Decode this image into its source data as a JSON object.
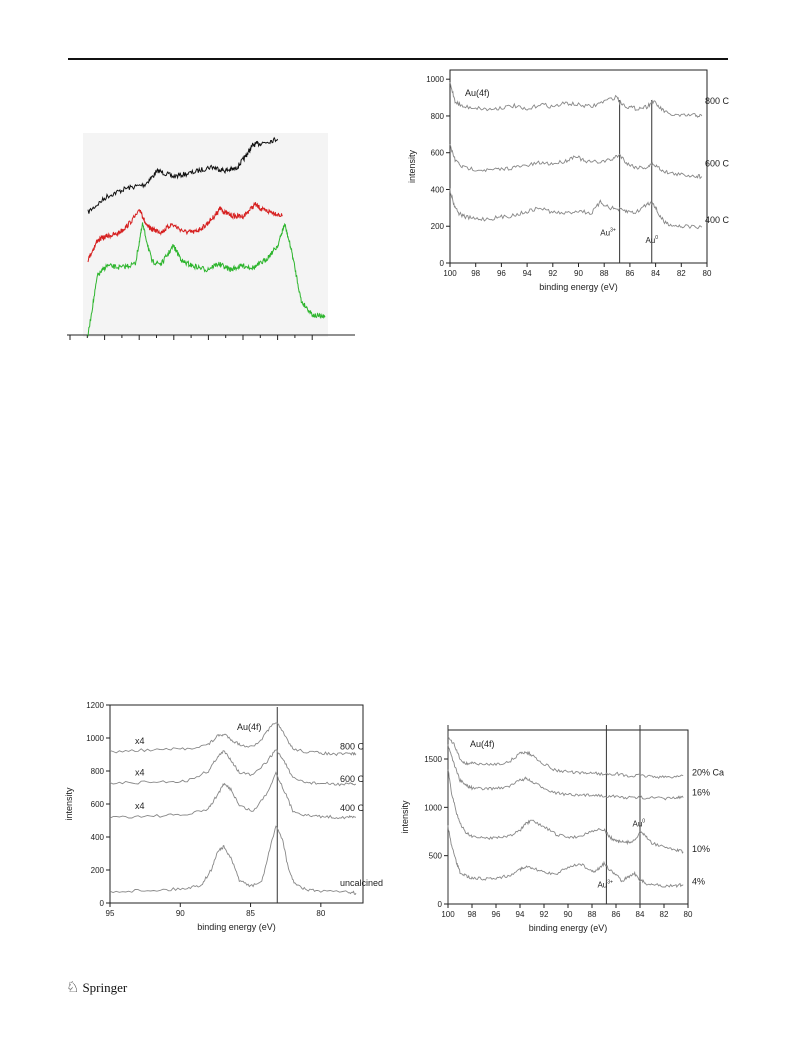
{
  "footer": {
    "publisher": "Springer",
    "publisher_icon": "springer-horse-icon"
  },
  "colors": {
    "black_trace": "#111111",
    "red_trace": "#d62020",
    "green_trace": "#2db52d",
    "spectrum_line": "#888888",
    "axis": "#222222"
  },
  "chart_data": [
    {
      "id": "fig-a",
      "type": "line",
      "title": "",
      "xlabel": "",
      "ylabel": "",
      "tick_labels_shown": false,
      "series": [
        {
          "color": "#111111",
          "x": [
            0,
            0.1,
            0.2,
            0.3,
            0.37,
            0.45,
            0.55,
            0.65,
            0.72,
            0.78,
            0.83,
            0.87,
            0.92,
            1.0
          ],
          "y": [
            0.62,
            0.7,
            0.74,
            0.76,
            0.83,
            0.8,
            0.82,
            0.85,
            0.83,
            0.84,
            0.9,
            0.96,
            0.97,
            0.99
          ]
        },
        {
          "color": "#d62020",
          "x": [
            0,
            0.05,
            0.1,
            0.15,
            0.2,
            0.27,
            0.3,
            0.34,
            0.38,
            0.43,
            0.5,
            0.55,
            0.6,
            0.65,
            0.68,
            0.7,
            0.75,
            0.8,
            0.86,
            0.9,
            0.95,
            1.0
          ],
          "y": [
            0.38,
            0.48,
            0.5,
            0.51,
            0.55,
            0.63,
            0.55,
            0.53,
            0.52,
            0.56,
            0.52,
            0.52,
            0.55,
            0.6,
            0.64,
            0.62,
            0.6,
            0.6,
            0.66,
            0.63,
            0.62,
            0.6
          ]
        },
        {
          "color": "#2db52d",
          "x": [
            0,
            0.04,
            0.08,
            0.14,
            0.2,
            0.23,
            0.27,
            0.31,
            0.36,
            0.4,
            0.44,
            0.5,
            0.55,
            0.6,
            0.65,
            0.7,
            0.75,
            0.8,
            0.83,
            0.86,
            0.9,
            0.95,
            1.0
          ],
          "y": [
            0.0,
            0.3,
            0.35,
            0.34,
            0.36,
            0.56,
            0.37,
            0.36,
            0.45,
            0.37,
            0.35,
            0.33,
            0.36,
            0.33,
            0.35,
            0.34,
            0.38,
            0.45,
            0.56,
            0.42,
            0.17,
            0.1,
            0.09
          ]
        }
      ]
    },
    {
      "id": "fig-b",
      "type": "line",
      "annotation": "Au(4f)",
      "xlabel": "binding energy (eV)",
      "ylabel": "intensity",
      "xlim": [
        100,
        80
      ],
      "ylim": [
        0,
        1050
      ],
      "xticks": [
        "100",
        "98",
        "96",
        "94",
        "92",
        "90",
        "88",
        "86",
        "84",
        "82",
        "80"
      ],
      "yticks": [
        "0",
        "200",
        "400",
        "600",
        "800",
        "1000"
      ],
      "vlines": [
        86.8,
        84.3
      ],
      "peak_labels": [
        {
          "text": "Au",
          "sup": "3+",
          "x": 87.7,
          "y": 150
        },
        {
          "text": "Au",
          "sup": "0",
          "x": 84.3,
          "y": 110
        }
      ],
      "series": [
        {
          "name": "800 C",
          "x": [
            100,
            99.6,
            99,
            98,
            97,
            96,
            95,
            94,
            93,
            92,
            91,
            90,
            89,
            88,
            87,
            86.8,
            86.2,
            85.5,
            84.7,
            84.2,
            83.6,
            83,
            82,
            81,
            80.4
          ],
          "y": [
            980,
            880,
            850,
            845,
            835,
            845,
            855,
            830,
            865,
            850,
            870,
            860,
            850,
            880,
            905,
            875,
            850,
            840,
            850,
            880,
            840,
            810,
            800,
            805,
            800
          ]
        },
        {
          "name": "600 C",
          "x": [
            100,
            99.6,
            99,
            98,
            97,
            96,
            95,
            94,
            93,
            92,
            91,
            90.2,
            89.5,
            88.5,
            87.5,
            86.8,
            86.2,
            85.5,
            84.7,
            84.2,
            83.6,
            83,
            82,
            81,
            80.4
          ],
          "y": [
            640,
            560,
            520,
            510,
            505,
            510,
            520,
            530,
            545,
            540,
            555,
            585,
            550,
            550,
            560,
            590,
            540,
            520,
            520,
            540,
            510,
            490,
            480,
            475,
            470
          ]
        },
        {
          "name": "400 C",
          "x": [
            100,
            99.7,
            99.3,
            98.8,
            98,
            97,
            96,
            95,
            94,
            93,
            92,
            91,
            90,
            89,
            88.3,
            87.5,
            86.8,
            86.2,
            85.5,
            84.7,
            84.2,
            83.8,
            83.3,
            82.6,
            81.8,
            80.4
          ],
          "y": [
            400,
            320,
            270,
            250,
            240,
            240,
            250,
            260,
            280,
            300,
            275,
            270,
            285,
            270,
            330,
            300,
            290,
            280,
            275,
            320,
            330,
            270,
            220,
            205,
            200,
            195
          ]
        }
      ]
    },
    {
      "id": "fig-c",
      "type": "line",
      "annotation": "Au(4f)",
      "xlabel": "binding energy (eV)",
      "ylabel": "intensity",
      "xlim": [
        95,
        77
      ],
      "ylim": [
        0,
        1200
      ],
      "xticks": [
        "95",
        "90",
        "85",
        "80"
      ],
      "yticks": [
        "0",
        "200",
        "400",
        "600",
        "800",
        "1000",
        "1200"
      ],
      "vlines": [
        83.1
      ],
      "scale_markers": [
        "x4",
        "x4",
        "x4"
      ],
      "series": [
        {
          "name": "800 C",
          "x": [
            95,
            93,
            91,
            89.5,
            88,
            87.3,
            86.8,
            86.2,
            85.5,
            84.5,
            83.8,
            83.2,
            82.6,
            82,
            81,
            80,
            79,
            78,
            77.5
          ],
          "y": [
            915,
            925,
            930,
            935,
            960,
            1015,
            1020,
            980,
            950,
            960,
            1040,
            1100,
            1020,
            935,
            915,
            910,
            900,
            905,
            905
          ]
        },
        {
          "name": "600 C",
          "x": [
            95,
            93,
            91,
            89.5,
            88,
            87.4,
            86.9,
            86.4,
            85.8,
            84.8,
            83.8,
            83.2,
            82.6,
            82,
            81,
            80,
            79,
            78,
            77.5
          ],
          "y": [
            725,
            730,
            735,
            740,
            800,
            880,
            920,
            870,
            790,
            775,
            860,
            930,
            860,
            755,
            730,
            725,
            720,
            720,
            720
          ]
        },
        {
          "name": "400 C",
          "x": [
            95,
            93,
            91,
            89.5,
            88,
            87.4,
            86.9,
            86.4,
            85.8,
            84.8,
            83.8,
            83.2,
            82.6,
            82,
            81,
            80,
            79,
            78,
            77.5
          ],
          "y": [
            520,
            525,
            530,
            535,
            570,
            650,
            720,
            690,
            590,
            555,
            670,
            790,
            680,
            560,
            530,
            525,
            520,
            520,
            520
          ]
        },
        {
          "name": "uncalcined",
          "x": [
            95,
            93,
            91,
            89.5,
            88.5,
            87.8,
            87.3,
            86.9,
            86.4,
            85.8,
            85,
            84.2,
            83.7,
            83.2,
            82.7,
            82.3,
            81.8,
            81,
            80,
            78,
            77.5
          ],
          "y": [
            70,
            75,
            80,
            90,
            110,
            200,
            320,
            340,
            270,
            140,
            100,
            130,
            300,
            470,
            380,
            200,
            110,
            80,
            70,
            65,
            60
          ]
        }
      ]
    },
    {
      "id": "fig-d",
      "type": "line",
      "annotation": "Au(4f)",
      "xlabel": "binding energy (eV)",
      "ylabel": "intensity",
      "xlim": [
        100,
        80
      ],
      "ylim": [
        0,
        1800
      ],
      "xticks": [
        "100",
        "98",
        "96",
        "94",
        "92",
        "90",
        "88",
        "86",
        "84",
        "82",
        "80"
      ],
      "yticks": [
        "0",
        "500",
        "1000",
        "1500"
      ],
      "vlines": [
        100,
        86.8,
        84.0
      ],
      "peak_labels": [
        {
          "text": "Au",
          "sup": "3+",
          "x": 86.9,
          "y": 170
        },
        {
          "text": "Au",
          "sup": "0",
          "x": 84.1,
          "y": 800
        }
      ],
      "series": [
        {
          "name": "20% Ca",
          "x": [
            100,
            99.5,
            99,
            98.5,
            98,
            97,
            96,
            95,
            94,
            93.5,
            93,
            92,
            91,
            90,
            89,
            88,
            87,
            86,
            85,
            84,
            83,
            82,
            81,
            80.4
          ],
          "y": [
            1720,
            1650,
            1500,
            1450,
            1460,
            1440,
            1450,
            1460,
            1560,
            1570,
            1540,
            1450,
            1380,
            1370,
            1350,
            1360,
            1340,
            1350,
            1320,
            1330,
            1320,
            1310,
            1320,
            1330
          ]
        },
        {
          "name": "16%",
          "x": [
            100,
            99.5,
            99,
            98.5,
            98,
            97,
            96,
            95,
            94,
            93.5,
            93,
            92,
            91,
            90,
            89,
            88,
            87,
            86,
            85,
            84,
            83,
            82,
            81,
            80.4
          ],
          "y": [
            1650,
            1450,
            1280,
            1230,
            1200,
            1190,
            1200,
            1210,
            1280,
            1300,
            1260,
            1200,
            1150,
            1130,
            1120,
            1130,
            1120,
            1110,
            1100,
            1100,
            1100,
            1090,
            1100,
            1100
          ]
        },
        {
          "name": "10%",
          "x": [
            100,
            99.7,
            99.3,
            99,
            98.5,
            98,
            97,
            96,
            95,
            94,
            93.5,
            93,
            92,
            91,
            90,
            89,
            88,
            87,
            86.5,
            86,
            85.5,
            85,
            84.5,
            84,
            83.5,
            83,
            82,
            81,
            80.4
          ],
          "y": [
            1400,
            1150,
            950,
            830,
            740,
            700,
            680,
            690,
            700,
            760,
            830,
            860,
            800,
            720,
            690,
            700,
            760,
            770,
            690,
            650,
            640,
            640,
            650,
            740,
            700,
            630,
            590,
            560,
            540
          ]
        },
        {
          "name": "4%",
          "x": [
            100,
            99.7,
            99.3,
            99,
            98.5,
            98,
            97,
            96,
            95,
            94,
            93.5,
            93,
            92,
            91,
            90,
            89,
            88,
            87.5,
            87,
            86.5,
            86,
            85.5,
            85,
            84.5,
            84,
            83.5,
            83,
            82,
            81,
            80.4
          ],
          "y": [
            800,
            600,
            430,
            330,
            290,
            270,
            260,
            270,
            290,
            360,
            380,
            370,
            330,
            310,
            380,
            420,
            330,
            360,
            420,
            350,
            300,
            240,
            280,
            320,
            250,
            210,
            200,
            190,
            190,
            200
          ]
        }
      ]
    }
  ]
}
